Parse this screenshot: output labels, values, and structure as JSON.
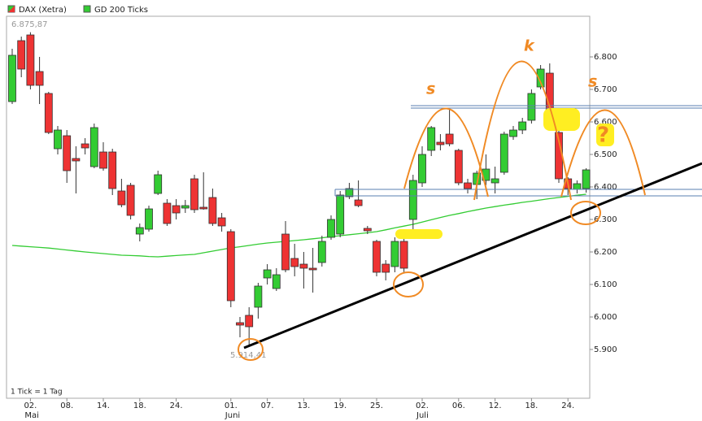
{
  "chart_data": {
    "type": "candlestick",
    "name": "DAX (Xetra)",
    "up_color": "#33cc33",
    "down_color": "#ee3333",
    "open": [
      6662.5,
      6850,
      6867.5,
      6755,
      6687.5,
      6517.5,
      6557.5,
      6487.5,
      6532.5,
      6462.5,
      6507.5,
      6507.5,
      6387.5,
      6405,
      6255,
      6270,
      6380,
      6350,
      6342.5,
      6335,
      6425,
      6337.5,
      6367.5,
      6305,
      6262.5,
      5982.5,
      6005,
      6030,
      6120,
      6087.5,
      6255,
      6180,
      6162.5,
      6150,
      6167.5,
      6245,
      6255,
      6370,
      6360,
      6272.5,
      6232.5,
      6162.5,
      6155,
      6232.5,
      6300,
      6412.5,
      6512.5,
      6537.5,
      6562.5,
      6512.5,
      6412.5,
      6407.5,
      6420,
      6412.5,
      6445,
      6555,
      6575,
      6605,
      6707.5,
      6750,
      6567.5,
      6425,
      6392.5,
      6395
    ],
    "high": [
      6825,
      6862.5,
      6875.87,
      6800,
      6692.5,
      6587.5,
      6575,
      6525,
      6550,
      6595,
      6537.5,
      6517.5,
      6425,
      6412.5,
      6287.5,
      6342.5,
      6450,
      6362.5,
      6362.5,
      6360,
      6437.5,
      6445,
      6395,
      6320,
      6270,
      6000,
      6030,
      6105,
      6162.5,
      6150,
      6295,
      6225,
      6200,
      6212.5,
      6250,
      6312.5,
      6387.5,
      6412.5,
      6420,
      6280,
      6237.5,
      6175,
      6245,
      6250,
      6437.5,
      6525,
      6587.5,
      6562.5,
      6637.5,
      6517.5,
      6425,
      6450,
      6500,
      6462.5,
      6570,
      6587.5,
      6612.5,
      6700,
      6775,
      6780,
      6575,
      6430,
      6420,
      6457.5
    ],
    "low": [
      6655,
      6737.5,
      6700,
      6655,
      6562.5,
      6500,
      6412.5,
      6380,
      6500,
      6457.5,
      6450,
      6375,
      6337.5,
      6300,
      6232.5,
      6262.5,
      6375,
      6280,
      6300,
      6320,
      6320,
      6330,
      6280,
      6262.5,
      6030,
      5937.5,
      5914.41,
      5995,
      6100,
      6080,
      6137.5,
      6125,
      6087.5,
      6075,
      6155,
      6237.5,
      6245,
      6362.5,
      6337.5,
      6255,
      6125,
      6112.5,
      6137.5,
      6137.5,
      6262.5,
      6400,
      6495,
      6512.5,
      6525,
      6405,
      6380,
      6362.5,
      6405,
      6380,
      6437.5,
      6545,
      6562.5,
      6595,
      6700,
      6625,
      6412.5,
      6375,
      6380,
      6382.5
    ],
    "close": [
      6805,
      6762.5,
      6712.5,
      6712.5,
      6567.5,
      6575,
      6450,
      6480,
      6520,
      6582.5,
      6457.5,
      6395,
      6345,
      6312.5,
      6275,
      6332.5,
      6437.5,
      6287.5,
      6320,
      6342.5,
      6330,
      6332.5,
      6287.5,
      6280,
      6050,
      5975,
      5970,
      6095,
      6145,
      6130,
      6145,
      6155,
      6150,
      6145,
      6232.5,
      6300,
      6375,
      6395,
      6342.5,
      6265,
      6137.5,
      6137.5,
      6232.5,
      6150,
      6420,
      6500,
      6582.5,
      6530,
      6532.5,
      6412.5,
      6395,
      6442.5,
      6455,
      6425,
      6562.5,
      6575,
      6600,
      6687.5,
      6762.5,
      6637.5,
      6425,
      6395,
      6410,
      6452.5
    ],
    "categories": [
      null,
      null,
      "02.",
      null,
      null,
      null,
      "08.",
      null,
      null,
      null,
      "14.",
      null,
      null,
      null,
      "18.",
      null,
      null,
      null,
      "24.",
      null,
      null,
      null,
      null,
      null,
      "01.",
      null,
      null,
      null,
      "07.",
      null,
      null,
      null,
      "13.",
      null,
      null,
      null,
      "19.",
      null,
      null,
      null,
      "25.",
      null,
      null,
      null,
      null,
      "02.",
      null,
      null,
      null,
      "06.",
      null,
      null,
      null,
      "12.",
      null,
      null,
      null,
      "18.",
      null,
      null,
      null,
      "24.",
      null,
      null
    ],
    "months": [
      null,
      null,
      "Mai",
      null,
      null,
      null,
      null,
      null,
      null,
      null,
      null,
      null,
      null,
      null,
      null,
      null,
      null,
      null,
      null,
      null,
      null,
      null,
      null,
      null,
      "Juni",
      null,
      null,
      null,
      null,
      null,
      null,
      null,
      null,
      null,
      null,
      null,
      null,
      null,
      null,
      null,
      null,
      null,
      null,
      null,
      null,
      "Juli",
      null,
      null,
      null,
      null,
      null,
      null,
      null,
      null,
      null,
      null,
      null,
      null,
      null,
      null,
      null,
      null,
      null,
      null
    ],
    "ma": {
      "name": "GD 200 Ticks",
      "color": "#33cc33",
      "values": [
        6220,
        6218,
        6216,
        6214,
        6212,
        6209,
        6206,
        6203,
        6200,
        6197.5,
        6195,
        6192.5,
        6190,
        6189,
        6188,
        6186,
        6185,
        6187,
        6189,
        6191,
        6192.5,
        6197.5,
        6202.5,
        6207.5,
        6212.5,
        6216,
        6220,
        6224,
        6227.5,
        6230,
        6232.5,
        6235,
        6237.5,
        6240.5,
        6243.5,
        6247,
        6250,
        6253,
        6256,
        6259,
        6262.5,
        6268,
        6274,
        6279.5,
        6285,
        6292,
        6299,
        6306,
        6312.5,
        6318,
        6324,
        6329.5,
        6335,
        6339.5,
        6344,
        6348,
        6352.5,
        6356,
        6360,
        6364,
        6367.5,
        6371,
        6374.5,
        6377.5
      ]
    },
    "ylim": [
      5750,
      6925
    ],
    "yticks": [
      {
        "value": 5900,
        "label": "5.900"
      },
      {
        "value": 6000,
        "label": "6.000"
      },
      {
        "value": 6100,
        "label": "6.100"
      },
      {
        "value": 6200,
        "label": "6.200"
      },
      {
        "value": 6300,
        "label": "6.300"
      },
      {
        "value": 6400,
        "label": "6.400"
      },
      {
        "value": 6500,
        "label": "6.500"
      },
      {
        "value": 6600,
        "label": "6.600"
      },
      {
        "value": 6700,
        "label": "6.700"
      },
      {
        "value": 6800,
        "label": "6.800"
      }
    ],
    "high_label": "6.875,87",
    "low_label": "5.914,41",
    "note": "1 Tick = 1 Tag",
    "annotations": [
      "s",
      "k",
      "s",
      "?"
    ]
  }
}
